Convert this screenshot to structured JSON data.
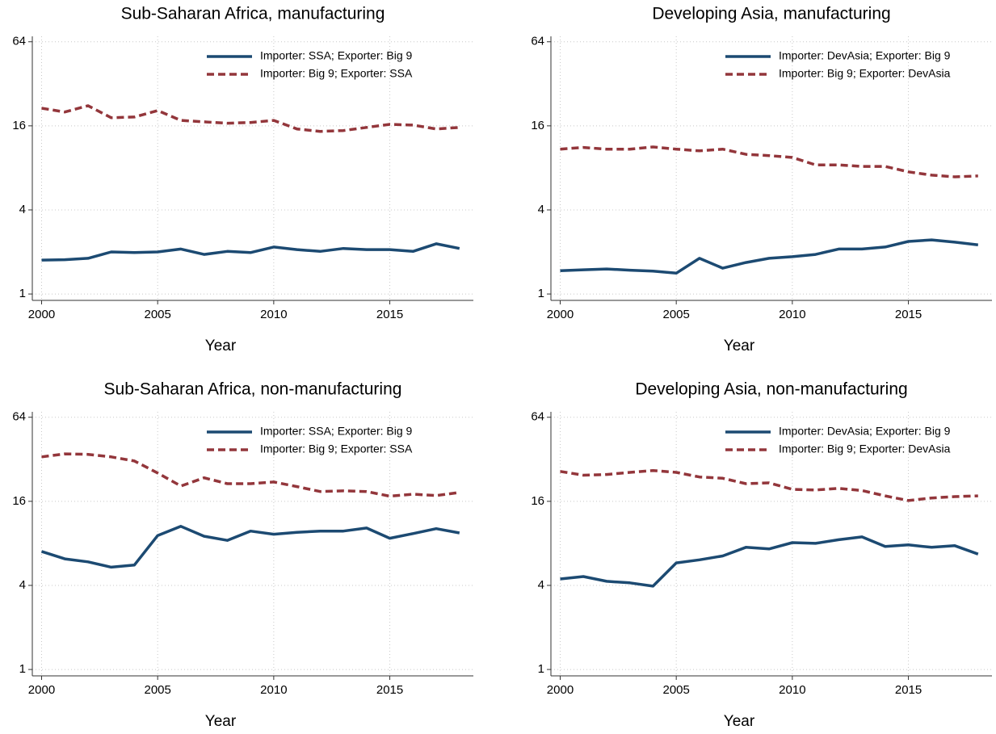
{
  "chart_data": [
    {
      "type": "line",
      "title": "Sub-Saharan Africa, manufacturing",
      "xlabel": "Year",
      "x": [
        2000,
        2001,
        2002,
        2003,
        2004,
        2005,
        2006,
        2007,
        2008,
        2009,
        2010,
        2011,
        2012,
        2013,
        2014,
        2015,
        2016,
        2017,
        2018
      ],
      "series": [
        {
          "name": "Importer: SSA; Exporter: Big 9",
          "color": "#1c4a72",
          "dash": "solid",
          "values": [
            1.75,
            1.76,
            1.8,
            2.0,
            1.98,
            2.0,
            2.1,
            1.92,
            2.02,
            1.98,
            2.17,
            2.08,
            2.02,
            2.12,
            2.08,
            2.08,
            2.02,
            2.29,
            2.12
          ]
        },
        {
          "name": "Importer: Big 9; Exporter: SSA",
          "color": "#93363b",
          "dash": "dashed",
          "values": [
            21.4,
            20.1,
            22.3,
            18.3,
            18.5,
            20.6,
            17.5,
            17.1,
            16.7,
            16.9,
            17.5,
            15.2,
            14.6,
            14.8,
            15.6,
            16.4,
            16.2,
            15.2,
            15.6
          ]
        }
      ],
      "xlim": [
        1999.6,
        2018.6
      ],
      "xticks": [
        2000,
        2005,
        2010,
        2015
      ],
      "ylim": [
        0.9,
        70
      ],
      "yticks": [
        1,
        4,
        16,
        64
      ],
      "y_scale": "log",
      "grid": true,
      "legend": "top-right"
    },
    {
      "type": "line",
      "title": "Developing Asia, manufacturing",
      "xlabel": "Year",
      "x": [
        2000,
        2001,
        2002,
        2003,
        2004,
        2005,
        2006,
        2007,
        2008,
        2009,
        2010,
        2011,
        2012,
        2013,
        2014,
        2015,
        2016,
        2017,
        2018
      ],
      "series": [
        {
          "name": "Importer: DevAsia; Exporter: Big 9",
          "color": "#1c4a72",
          "dash": "solid",
          "values": [
            1.47,
            1.49,
            1.51,
            1.48,
            1.46,
            1.41,
            1.8,
            1.53,
            1.68,
            1.8,
            1.85,
            1.92,
            2.1,
            2.1,
            2.17,
            2.38,
            2.44,
            2.35,
            2.25
          ]
        },
        {
          "name": "Importer: Big 9; Exporter: DevAsia",
          "color": "#93363b",
          "dash": "dashed",
          "values": [
            10.9,
            11.2,
            10.9,
            10.9,
            11.3,
            10.9,
            10.6,
            10.9,
            10.0,
            9.8,
            9.5,
            8.4,
            8.4,
            8.2,
            8.2,
            7.5,
            7.1,
            6.9,
            7.0
          ]
        }
      ],
      "xlim": [
        1999.6,
        2018.6
      ],
      "xticks": [
        2000,
        2005,
        2010,
        2015
      ],
      "ylim": [
        0.9,
        70
      ],
      "yticks": [
        1,
        4,
        16,
        64
      ],
      "y_scale": "log",
      "grid": true,
      "legend": "top-right"
    },
    {
      "type": "line",
      "title": "Sub-Saharan Africa, non-manufacturing",
      "xlabel": "Year",
      "x": [
        2000,
        2001,
        2002,
        2003,
        2004,
        2005,
        2006,
        2007,
        2008,
        2009,
        2010,
        2011,
        2012,
        2013,
        2014,
        2015,
        2016,
        2017,
        2018
      ],
      "series": [
        {
          "name": "Importer: SSA; Exporter: Big 9",
          "color": "#1c4a72",
          "dash": "solid",
          "values": [
            7.0,
            6.2,
            5.9,
            5.4,
            5.6,
            9.1,
            10.6,
            9.0,
            8.4,
            9.8,
            9.3,
            9.6,
            9.8,
            9.8,
            10.3,
            8.7,
            9.4,
            10.2,
            9.5
          ]
        },
        {
          "name": "Importer: Big 9; Exporter: SSA",
          "color": "#93363b",
          "dash": "dashed",
          "values": [
            33.3,
            35,
            34.7,
            33.3,
            31.1,
            25.5,
            20.6,
            23.6,
            21.4,
            21.4,
            22,
            20.4,
            18.8,
            19,
            18.8,
            17.4,
            18,
            17.6,
            18.5
          ]
        }
      ],
      "xlim": [
        1999.6,
        2018.6
      ],
      "xticks": [
        2000,
        2005,
        2010,
        2015
      ],
      "ylim": [
        0.9,
        70
      ],
      "yticks": [
        1,
        4,
        16,
        64
      ],
      "y_scale": "log",
      "grid": true,
      "legend": "top-right"
    },
    {
      "type": "line",
      "title": "Developing Asia, non-manufacturing",
      "xlabel": "Year",
      "x": [
        2000,
        2001,
        2002,
        2003,
        2004,
        2005,
        2006,
        2007,
        2008,
        2009,
        2010,
        2011,
        2012,
        2013,
        2014,
        2015,
        2016,
        2017,
        2018
      ],
      "series": [
        {
          "name": "Importer: DevAsia; Exporter: Big 9",
          "color": "#1c4a72",
          "dash": "solid",
          "values": [
            4.45,
            4.63,
            4.28,
            4.17,
            3.95,
            5.8,
            6.1,
            6.5,
            7.5,
            7.3,
            8.1,
            8.0,
            8.5,
            8.9,
            7.6,
            7.8,
            7.5,
            7.7,
            6.7
          ]
        },
        {
          "name": "Importer: Big 9; Exporter: DevAsia",
          "color": "#93363b",
          "dash": "dashed",
          "values": [
            26.2,
            24.6,
            24.9,
            25.8,
            26.6,
            25.8,
            23.9,
            23.4,
            21.4,
            21.7,
            19.5,
            19.3,
            19.8,
            19.1,
            17.5,
            16.2,
            16.9,
            17.3,
            17.5
          ]
        }
      ],
      "xlim": [
        1999.6,
        2018.6
      ],
      "xticks": [
        2000,
        2005,
        2010,
        2015
      ],
      "ylim": [
        0.9,
        70
      ],
      "yticks": [
        1,
        4,
        16,
        64
      ],
      "y_scale": "log",
      "grid": true,
      "legend": "top-right"
    }
  ]
}
